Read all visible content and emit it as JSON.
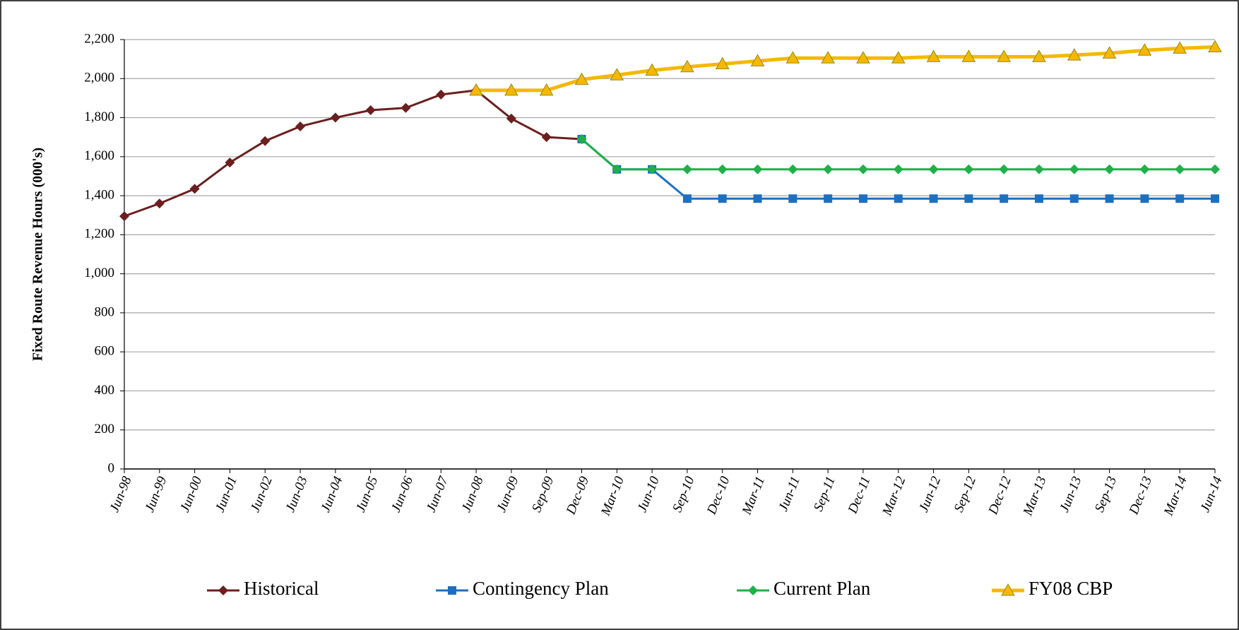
{
  "chart_data": {
    "type": "line",
    "y_label": "Fixed Route Revenue Hours (000's)",
    "categories": [
      "Jun-98",
      "Jun-99",
      "Jun-00",
      "Jun-01",
      "Jun-02",
      "Jun-03",
      "Jun-04",
      "Jun-05",
      "Jun-06",
      "Jun-07",
      "Jun-08",
      "Jun-09",
      "Sep-09",
      "Dec-09",
      "Mar-10",
      "Jun-10",
      "Sep-10",
      "Dec-10",
      "Mar-11",
      "Jun-11",
      "Sep-11",
      "Dec-11",
      "Mar-12",
      "Jun-12",
      "Sep-12",
      "Dec-12",
      "Mar-13",
      "Jun-13",
      "Sep-13",
      "Dec-13",
      "Mar-14",
      "Jun-14"
    ],
    "series": [
      {
        "name": "Historical",
        "color": "#6b1f1f",
        "marker": "diamond",
        "values": [
          1295,
          1360,
          1435,
          1570,
          1680,
          1755,
          1800,
          1838,
          1850,
          1918,
          1940,
          1795,
          1700,
          1690,
          null,
          null,
          null,
          null,
          null,
          null,
          null,
          null,
          null,
          null,
          null,
          null,
          null,
          null,
          null,
          null,
          null,
          null
        ]
      },
      {
        "name": "Contingency Plan",
        "color": "#1f6fbf",
        "marker": "square",
        "values": [
          null,
          null,
          null,
          null,
          null,
          null,
          null,
          null,
          null,
          null,
          null,
          null,
          null,
          1690,
          1535,
          1535,
          1385,
          1385,
          1385,
          1385,
          1385,
          1385,
          1385,
          1385,
          1385,
          1385,
          1385,
          1385,
          1385,
          1385,
          1385,
          1385
        ]
      },
      {
        "name": "Current Plan",
        "color": "#1fb04a",
        "marker": "diamond",
        "values": [
          null,
          null,
          null,
          null,
          null,
          null,
          null,
          null,
          null,
          null,
          null,
          null,
          null,
          1690,
          1535,
          1535,
          1535,
          1535,
          1535,
          1535,
          1535,
          1535,
          1535,
          1535,
          1535,
          1535,
          1535,
          1535,
          1535,
          1535,
          1535,
          1535
        ]
      },
      {
        "name": "FY08 CBP",
        "color": "#f5b800",
        "marker": "triangle",
        "values": [
          null,
          null,
          null,
          null,
          null,
          null,
          null,
          null,
          null,
          null,
          1940,
          1940,
          1940,
          1995,
          2018,
          2042,
          2060,
          2075,
          2090,
          2105,
          2105,
          2105,
          2105,
          2112,
          2112,
          2112,
          2112,
          2120,
          2130,
          2145,
          2155,
          2162
        ]
      }
    ],
    "ylim": [
      0,
      2200
    ],
    "yticks": [
      0,
      200,
      400,
      600,
      800,
      {
        "value": 1000,
        "label": "1,000"
      },
      {
        "value": 1200,
        "label": "1,200"
      },
      {
        "value": 1400,
        "label": "1,400"
      },
      {
        "value": 1600,
        "label": "1,600"
      },
      {
        "value": 1800,
        "label": "1,800"
      },
      {
        "value": 2000,
        "label": "2,000"
      },
      {
        "value": 2200,
        "label": "2,200"
      }
    ],
    "grid": true,
    "legend": "bottom"
  }
}
